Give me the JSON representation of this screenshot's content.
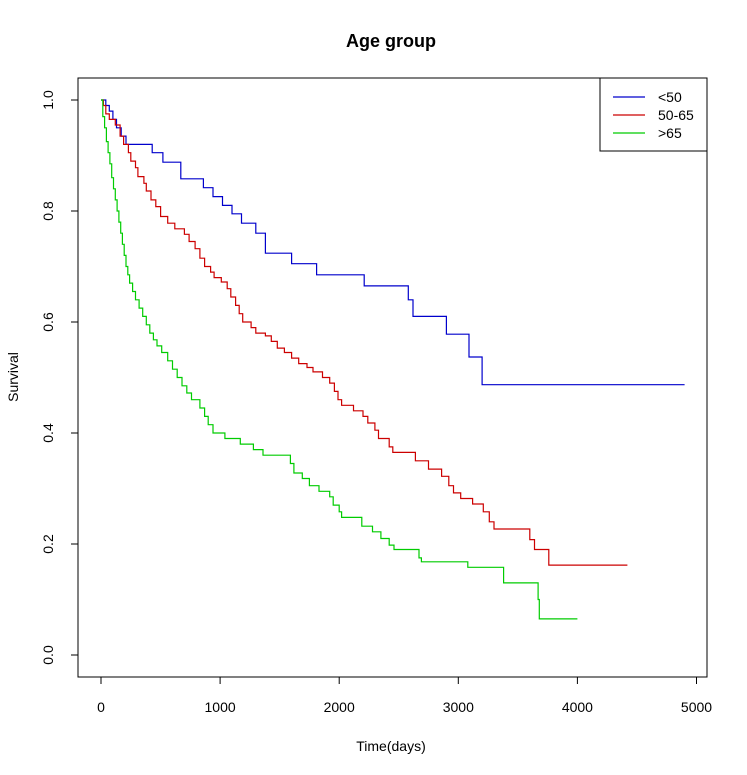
{
  "chart_data": {
    "type": "line",
    "step": true,
    "title": "Age group",
    "xlabel": "Time(days)",
    "ylabel": "Survival",
    "xlim": [
      0,
      5000
    ],
    "ylim": [
      0,
      1
    ],
    "x_ticks": [
      0,
      1000,
      2000,
      3000,
      4000,
      5000
    ],
    "y_ticks": [
      0.0,
      0.2,
      0.4,
      0.6,
      0.8,
      1.0
    ],
    "x_tick_labels": [
      "0",
      "1000",
      "2000",
      "3000",
      "4000",
      "5000"
    ],
    "y_tick_labels": [
      "0.0",
      "0.2",
      "0.4",
      "0.6",
      "0.8",
      "1.0"
    ],
    "grid": false,
    "legend_position": "top-right",
    "series": [
      {
        "name": "<50",
        "color": "#0000cc",
        "points": [
          [
            0,
            1.0
          ],
          [
            40,
            0.99
          ],
          [
            70,
            0.98
          ],
          [
            100,
            0.965
          ],
          [
            130,
            0.95
          ],
          [
            170,
            0.935
          ],
          [
            210,
            0.92
          ],
          [
            430,
            0.905
          ],
          [
            520,
            0.888
          ],
          [
            670,
            0.858
          ],
          [
            860,
            0.842
          ],
          [
            940,
            0.826
          ],
          [
            1020,
            0.81
          ],
          [
            1100,
            0.795
          ],
          [
            1180,
            0.778
          ],
          [
            1300,
            0.76
          ],
          [
            1380,
            0.724
          ],
          [
            1600,
            0.705
          ],
          [
            1810,
            0.685
          ],
          [
            2210,
            0.665
          ],
          [
            2580,
            0.64
          ],
          [
            2620,
            0.61
          ],
          [
            2900,
            0.578
          ],
          [
            3090,
            0.537
          ],
          [
            3200,
            0.487
          ],
          [
            4900,
            0.487
          ]
        ]
      },
      {
        "name": "50-65",
        "color": "#cc0000",
        "points": [
          [
            0,
            1.0
          ],
          [
            20,
            0.99
          ],
          [
            40,
            0.975
          ],
          [
            70,
            0.965
          ],
          [
            120,
            0.955
          ],
          [
            160,
            0.935
          ],
          [
            190,
            0.92
          ],
          [
            230,
            0.905
          ],
          [
            250,
            0.89
          ],
          [
            290,
            0.878
          ],
          [
            310,
            0.862
          ],
          [
            360,
            0.85
          ],
          [
            380,
            0.836
          ],
          [
            420,
            0.82
          ],
          [
            460,
            0.808
          ],
          [
            500,
            0.79
          ],
          [
            560,
            0.778
          ],
          [
            620,
            0.768
          ],
          [
            700,
            0.758
          ],
          [
            740,
            0.745
          ],
          [
            790,
            0.732
          ],
          [
            830,
            0.715
          ],
          [
            870,
            0.7
          ],
          [
            920,
            0.69
          ],
          [
            950,
            0.68
          ],
          [
            1010,
            0.672
          ],
          [
            1060,
            0.66
          ],
          [
            1090,
            0.645
          ],
          [
            1130,
            0.63
          ],
          [
            1160,
            0.615
          ],
          [
            1190,
            0.6
          ],
          [
            1260,
            0.59
          ],
          [
            1300,
            0.58
          ],
          [
            1380,
            0.575
          ],
          [
            1430,
            0.565
          ],
          [
            1480,
            0.553
          ],
          [
            1540,
            0.545
          ],
          [
            1600,
            0.535
          ],
          [
            1660,
            0.525
          ],
          [
            1730,
            0.518
          ],
          [
            1780,
            0.51
          ],
          [
            1860,
            0.5
          ],
          [
            1920,
            0.49
          ],
          [
            1960,
            0.475
          ],
          [
            1990,
            0.46
          ],
          [
            2020,
            0.45
          ],
          [
            2120,
            0.44
          ],
          [
            2200,
            0.43
          ],
          [
            2240,
            0.418
          ],
          [
            2300,
            0.405
          ],
          [
            2330,
            0.39
          ],
          [
            2420,
            0.375
          ],
          [
            2450,
            0.365
          ],
          [
            2640,
            0.35
          ],
          [
            2750,
            0.335
          ],
          [
            2860,
            0.322
          ],
          [
            2920,
            0.305
          ],
          [
            2960,
            0.292
          ],
          [
            3020,
            0.282
          ],
          [
            3120,
            0.272
          ],
          [
            3210,
            0.258
          ],
          [
            3260,
            0.24
          ],
          [
            3300,
            0.227
          ],
          [
            3600,
            0.208
          ],
          [
            3640,
            0.19
          ],
          [
            3760,
            0.162
          ],
          [
            4420,
            0.162
          ]
        ]
      },
      {
        "name": ">65",
        "color": "#00cc00",
        "points": [
          [
            0,
            1.0
          ],
          [
            15,
            0.97
          ],
          [
            30,
            0.95
          ],
          [
            45,
            0.925
          ],
          [
            60,
            0.905
          ],
          [
            75,
            0.885
          ],
          [
            90,
            0.86
          ],
          [
            105,
            0.84
          ],
          [
            120,
            0.82
          ],
          [
            135,
            0.8
          ],
          [
            150,
            0.78
          ],
          [
            165,
            0.76
          ],
          [
            180,
            0.74
          ],
          [
            195,
            0.72
          ],
          [
            210,
            0.7
          ],
          [
            225,
            0.685
          ],
          [
            240,
            0.67
          ],
          [
            265,
            0.655
          ],
          [
            290,
            0.64
          ],
          [
            320,
            0.625
          ],
          [
            350,
            0.61
          ],
          [
            380,
            0.595
          ],
          [
            410,
            0.58
          ],
          [
            440,
            0.568
          ],
          [
            470,
            0.557
          ],
          [
            510,
            0.545
          ],
          [
            560,
            0.53
          ],
          [
            600,
            0.515
          ],
          [
            640,
            0.5
          ],
          [
            680,
            0.485
          ],
          [
            720,
            0.472
          ],
          [
            760,
            0.46
          ],
          [
            830,
            0.445
          ],
          [
            870,
            0.43
          ],
          [
            900,
            0.415
          ],
          [
            940,
            0.4
          ],
          [
            1040,
            0.39
          ],
          [
            1170,
            0.38
          ],
          [
            1280,
            0.37
          ],
          [
            1360,
            0.36
          ],
          [
            1590,
            0.345
          ],
          [
            1620,
            0.328
          ],
          [
            1690,
            0.318
          ],
          [
            1750,
            0.305
          ],
          [
            1830,
            0.295
          ],
          [
            1920,
            0.285
          ],
          [
            1950,
            0.27
          ],
          [
            2000,
            0.258
          ],
          [
            2020,
            0.248
          ],
          [
            2190,
            0.232
          ],
          [
            2280,
            0.222
          ],
          [
            2350,
            0.21
          ],
          [
            2420,
            0.198
          ],
          [
            2460,
            0.19
          ],
          [
            2670,
            0.175
          ],
          [
            2690,
            0.168
          ],
          [
            3080,
            0.158
          ],
          [
            3380,
            0.13
          ],
          [
            3670,
            0.1
          ],
          [
            3680,
            0.065
          ],
          [
            4000,
            0.065
          ]
        ]
      }
    ]
  }
}
